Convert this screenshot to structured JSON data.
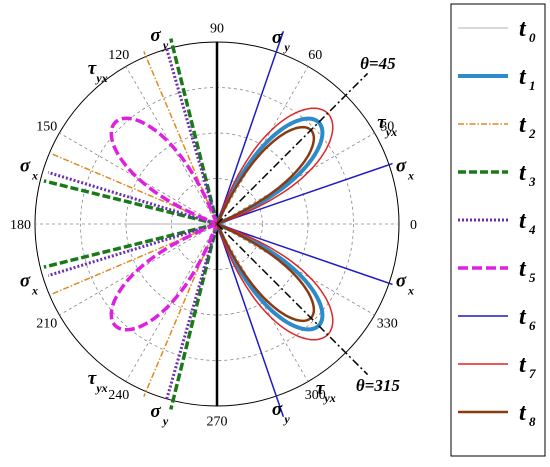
{
  "chart_data": {
    "type": "polar-line",
    "angle_ticks": [
      "0",
      "30",
      "60",
      "90",
      "120",
      "150",
      "180",
      "210",
      "240",
      "270",
      "300",
      "330"
    ],
    "grid": true,
    "legend_placement": "right",
    "reference_lines": [
      {
        "label": "θ=45",
        "angle": 45
      },
      {
        "label": "θ=315",
        "angle": 315
      }
    ],
    "annotations": [
      {
        "base": "σ",
        "sub": "y",
        "angle": 71
      },
      {
        "base": "σ",
        "sub": "x",
        "angle": 17
      },
      {
        "base": "τ",
        "sub": "yx",
        "angle": 31
      },
      {
        "base": "σ",
        "sub": "x",
        "angle": 343
      },
      {
        "base": "τ",
        "sub": "yx",
        "angle": 303
      },
      {
        "base": "σ",
        "sub": "y",
        "angle": 289
      },
      {
        "base": "σ",
        "sub": "y",
        "angle": 107
      },
      {
        "base": "τ",
        "sub": "yx",
        "angle": 128
      },
      {
        "base": "σ",
        "sub": "x",
        "angle": 163
      },
      {
        "base": "σ",
        "sub": "x",
        "angle": 197
      },
      {
        "base": "τ",
        "sub": "yx",
        "angle": 232
      },
      {
        "base": "σ",
        "sub": "y",
        "angle": 253
      }
    ],
    "series": [
      {
        "name": "t",
        "sub": "0",
        "color": "#b0b0b0",
        "dash": "",
        "width": 1,
        "traces": [
          {
            "shape": "ray",
            "angle": 180,
            "r": 0.5
          }
        ]
      },
      {
        "name": "t",
        "sub": "1",
        "color": "#2e8bc8",
        "dash": "",
        "width": 4,
        "traces": [
          {
            "shape": "lobe",
            "center": 45,
            "half": 22,
            "r": 0.79
          },
          {
            "shape": "lobe",
            "center": 315,
            "half": 22,
            "r": 0.79
          }
        ]
      },
      {
        "name": "t",
        "sub": "2",
        "color": "#e08a1e",
        "dash": "6 2 1.5 2",
        "width": 1.5,
        "traces": [
          {
            "shape": "ray",
            "angle": 113,
            "r": 1.03
          },
          {
            "shape": "ray",
            "angle": 157,
            "r": 0.99
          },
          {
            "shape": "ray",
            "angle": 203,
            "r": 0.99
          },
          {
            "shape": "ray",
            "angle": 247,
            "r": 1.03
          }
        ]
      },
      {
        "name": "t",
        "sub": "3",
        "color": "#1a7a1a",
        "dash": "8 3",
        "width": 3.5,
        "traces": [
          {
            "shape": "ray",
            "angle": 104,
            "r": 1.05
          },
          {
            "shape": "ray",
            "angle": 166,
            "r": 0.98
          },
          {
            "shape": "ray",
            "angle": 194,
            "r": 0.98
          },
          {
            "shape": "ray",
            "angle": 256,
            "r": 1.05
          }
        ]
      },
      {
        "name": "t",
        "sub": "4",
        "color": "#6a2fb0",
        "dash": "2 2",
        "width": 3,
        "traces": [
          {
            "shape": "ray",
            "angle": 106,
            "r": 1.0
          },
          {
            "shape": "ray",
            "angle": 163,
            "r": 0.97
          },
          {
            "shape": "ray",
            "angle": 197,
            "r": 0.97
          },
          {
            "shape": "ray",
            "angle": 254,
            "r": 1.0
          }
        ]
      },
      {
        "name": "t",
        "sub": "5",
        "color": "#e020e0",
        "dash": "10 4",
        "width": 3.5,
        "traces": [
          {
            "shape": "lobe",
            "center": 135,
            "half": 23,
            "r": 0.79
          },
          {
            "shape": "lobe",
            "center": 225,
            "half": 23,
            "r": 0.79
          }
        ]
      },
      {
        "name": "t",
        "sub": "6",
        "color": "#1c1cc4",
        "dash": "",
        "width": 1.5,
        "traces": [
          {
            "shape": "ray",
            "angle": 71,
            "r": 1.12
          },
          {
            "shape": "ray",
            "angle": 19,
            "r": 1.02
          },
          {
            "shape": "ray",
            "angle": 341,
            "r": 1.02
          },
          {
            "shape": "ray",
            "angle": 289,
            "r": 1.12
          }
        ]
      },
      {
        "name": "t",
        "sub": "7",
        "color": "#e02424",
        "dash": "",
        "width": 1.5,
        "traces": [
          {
            "shape": "lobe",
            "center": 45,
            "half": 25,
            "r": 0.86
          },
          {
            "shape": "lobe",
            "center": 315,
            "half": 25,
            "r": 0.86
          }
        ]
      },
      {
        "name": "t",
        "sub": "8",
        "color": "#8b3a10",
        "dash": "",
        "width": 2.5,
        "traces": [
          {
            "shape": "lobe",
            "center": 45,
            "half": 20,
            "r": 0.73
          },
          {
            "shape": "lobe",
            "center": 315,
            "half": 20,
            "r": 0.73
          }
        ]
      }
    ]
  }
}
